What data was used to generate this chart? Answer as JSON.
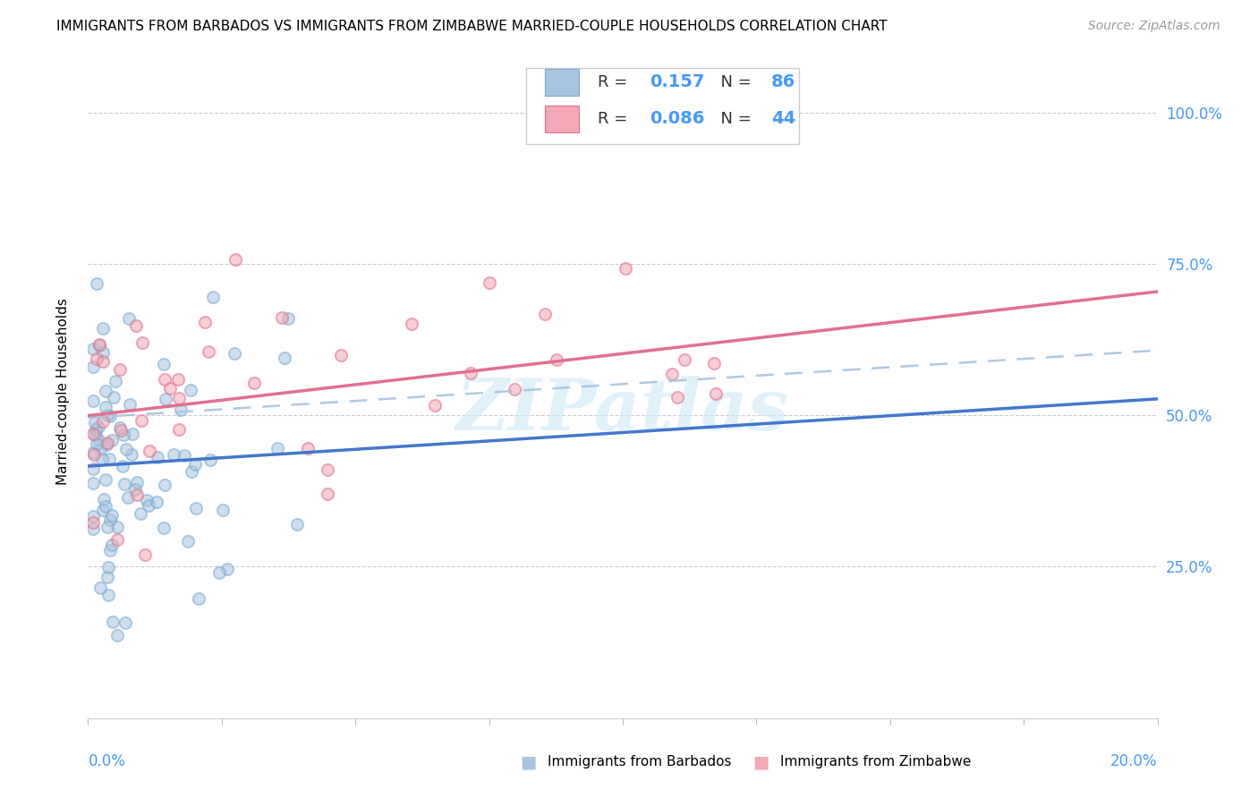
{
  "title": "IMMIGRANTS FROM BARBADOS VS IMMIGRANTS FROM ZIMBABWE MARRIED-COUPLE HOUSEHOLDS CORRELATION CHART",
  "source": "Source: ZipAtlas.com",
  "ylabel": "Married-couple Households",
  "xlim": [
    0.0,
    0.2
  ],
  "ylim": [
    0.0,
    1.08
  ],
  "barbados_color": "#a8c4e0",
  "barbados_edge_color": "#7aadd0",
  "zimbabwe_color": "#f4a7b5",
  "zimbabwe_edge_color": "#e07090",
  "barbados_R": 0.157,
  "barbados_N": 86,
  "zimbabwe_R": 0.086,
  "zimbabwe_N": 44,
  "trend_blue_color": "#4477cc",
  "trend_pink_color": "#e07090",
  "legend_label_barbados": "Immigrants from Barbados",
  "legend_label_zimbabwe": "Immigrants from Zimbabwe",
  "watermark": "ZIPatlas",
  "ytick_vals": [
    0.0,
    0.25,
    0.5,
    0.75,
    1.0
  ],
  "ytick_labels": [
    "",
    "25.0%",
    "50.0%",
    "75.0%",
    "100.0%"
  ],
  "right_ytick_color": "#4499ff",
  "grid_color": "#cccccc",
  "title_fontsize": 11,
  "source_fontsize": 10,
  "marker_size": 90,
  "marker_alpha": 0.55,
  "marker_linewidth": 1.5
}
